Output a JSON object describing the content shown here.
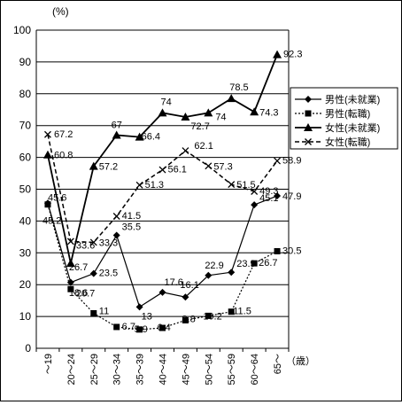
{
  "chart_data": {
    "type": "line",
    "title": "",
    "ylabel": "(%)",
    "xlabel": "（歳）",
    "ylim": [
      0,
      100
    ],
    "yticks": [
      0,
      10,
      20,
      30,
      40,
      50,
      60,
      70,
      80,
      90,
      100
    ],
    "grid": "horizontal",
    "legend_position": "right",
    "categories": [
      "～19",
      "20～24",
      "25～29",
      "30～34",
      "35～39",
      "40～44",
      "45～49",
      "50～54",
      "55～59",
      "60～64",
      "65～"
    ],
    "series": [
      {
        "name": "男性(未就業)",
        "line": "solid",
        "marker": "diamond",
        "color": "#000000",
        "values": [
          45.6,
          20.7,
          23.5,
          35.5,
          13,
          17.6,
          16.1,
          22.9,
          23.9,
          45.1,
          47.9
        ]
      },
      {
        "name": "男性(転職)",
        "line": "dotted",
        "marker": "square",
        "color": "#000000",
        "values": [
          45.2,
          18.6,
          11,
          6.7,
          5.9,
          6.4,
          8.8,
          10.2,
          11.5,
          26.7,
          30.5
        ]
      },
      {
        "name": "女性(未就業)",
        "line": "solid-thick",
        "marker": "triangle",
        "color": "#000000",
        "values": [
          60.8,
          26.7,
          57.2,
          67,
          66.4,
          74,
          72.7,
          74,
          78.5,
          74.3,
          92.3
        ]
      },
      {
        "name": "女性(転職)",
        "line": "dashed",
        "marker": "x",
        "color": "#000000",
        "values": [
          67.2,
          33.6,
          33.3,
          41.5,
          51.3,
          56.1,
          62.1,
          57.3,
          51.5,
          49.3,
          58.9
        ]
      }
    ],
    "data_labels": {
      "男性(未就業)": [
        "45.6",
        "20.7",
        "23.5",
        "35.5",
        "13",
        "17.6",
        "16.1",
        "22.9",
        "23.9",
        "45.1",
        "47.9"
      ],
      "男性(転職)": [
        "45.2",
        "18.6",
        "11",
        "6.7",
        "5.9",
        "6.4",
        "8.8",
        "10.2",
        "11.5",
        "26.7",
        "30.5"
      ],
      "女性(未就業)": [
        "60.8",
        "26.7",
        "57.2",
        "67",
        "66.4",
        "74",
        "72.7",
        "74",
        "78.5",
        "74.3",
        "92.3"
      ],
      "女性(転職)": [
        "67.2",
        "33.6",
        "33.3",
        "41.5",
        "51.3",
        "56.1",
        "62.1",
        "57.3",
        "51.5",
        "49.3",
        "58.9"
      ]
    }
  }
}
